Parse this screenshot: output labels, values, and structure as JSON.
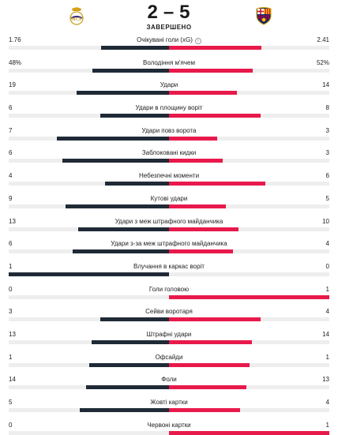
{
  "match": {
    "home_score": "2",
    "separator": "–",
    "away_score": "5",
    "status": "ЗАВЕРШЕНО"
  },
  "colors": {
    "home": "#1f2a36",
    "away": "#e8194b",
    "track": "#eeeeee"
  },
  "stats": [
    {
      "name": "Очікувані голи (xG)",
      "home": "1.76",
      "away": "2.41",
      "home_share": 0.422,
      "away_share": 0.578,
      "info": true
    },
    {
      "name": "Володіння м'ячем",
      "home": "48%",
      "away": "52%",
      "home_share": 0.48,
      "away_share": 0.52
    },
    {
      "name": "Удари",
      "home": "19",
      "away": "14",
      "home_share": 0.576,
      "away_share": 0.424
    },
    {
      "name": "Удари в площину воріт",
      "home": "6",
      "away": "8",
      "home_share": 0.429,
      "away_share": 0.571
    },
    {
      "name": "Удари повз ворота",
      "home": "7",
      "away": "3",
      "home_share": 0.7,
      "away_share": 0.3
    },
    {
      "name": "Заблоковані кидки",
      "home": "6",
      "away": "3",
      "home_share": 0.667,
      "away_share": 0.333
    },
    {
      "name": "Небезпечні моменти",
      "home": "4",
      "away": "6",
      "home_share": 0.4,
      "away_share": 0.6
    },
    {
      "name": "Кутові удари",
      "home": "9",
      "away": "5",
      "home_share": 0.643,
      "away_share": 0.357
    },
    {
      "name": "Удари з меж штрафного майданчика",
      "home": "13",
      "away": "10",
      "home_share": 0.565,
      "away_share": 0.435
    },
    {
      "name": "Удари з-за меж штрафного майданчика",
      "home": "6",
      "away": "4",
      "home_share": 0.6,
      "away_share": 0.4
    },
    {
      "name": "Влучання в каркас воріт",
      "home": "1",
      "away": "0",
      "home_share": 1.0,
      "away_share": 0.0
    },
    {
      "name": "Голи головою",
      "home": "0",
      "away": "1",
      "home_share": 0.0,
      "away_share": 1.0
    },
    {
      "name": "Сейви воротаря",
      "home": "3",
      "away": "4",
      "home_share": 0.429,
      "away_share": 0.571
    },
    {
      "name": "Штрафні удари",
      "home": "13",
      "away": "14",
      "home_share": 0.481,
      "away_share": 0.519
    },
    {
      "name": "Офсайди",
      "home": "1",
      "away": "1",
      "home_share": 0.5,
      "away_share": 0.5
    },
    {
      "name": "Фоли",
      "home": "14",
      "away": "13",
      "home_share": 0.519,
      "away_share": 0.481
    },
    {
      "name": "Жовті картки",
      "home": "5",
      "away": "4",
      "home_share": 0.556,
      "away_share": 0.444
    },
    {
      "name": "Червоні картки",
      "home": "0",
      "away": "1",
      "home_share": 0.0,
      "away_share": 1.0
    }
  ]
}
